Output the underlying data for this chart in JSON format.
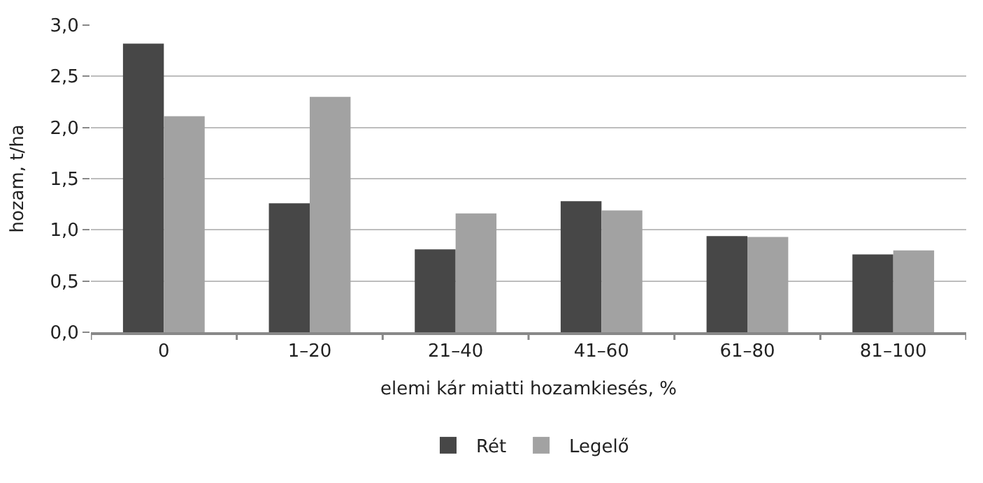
{
  "chart_data": {
    "type": "bar",
    "xlabel": "elemi kár miatti hozamkiesés, %",
    "ylabel": "hozam, t/ha",
    "categories": [
      "0",
      "1–20",
      "21–40",
      "41–60",
      "61–80",
      "81–100"
    ],
    "series": [
      {
        "name": "Rét",
        "color": "#474747",
        "values": [
          2.82,
          1.26,
          0.81,
          1.28,
          0.94,
          0.76
        ]
      },
      {
        "name": "Legelő",
        "color": "#a2a2a2",
        "values": [
          2.11,
          2.3,
          1.16,
          1.19,
          0.93,
          0.8
        ]
      }
    ],
    "ylim": [
      0,
      3
    ],
    "yticks": [
      {
        "value": 0,
        "label": "0,0"
      },
      {
        "value": 0.5,
        "label": "0,5"
      },
      {
        "value": 1,
        "label": "1,0"
      },
      {
        "value": 1.5,
        "label": "1,5"
      },
      {
        "value": 2,
        "label": "2,0"
      },
      {
        "value": 2.5,
        "label": "2,5"
      },
      {
        "value": 3,
        "label": "3,0"
      }
    ],
    "grid": "y",
    "legend": "bottom"
  }
}
